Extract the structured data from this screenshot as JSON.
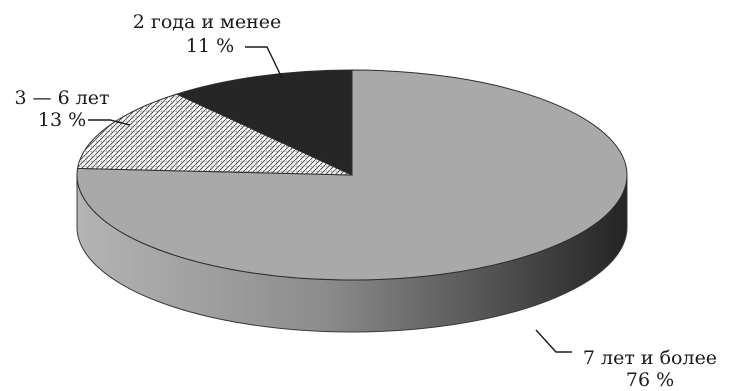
{
  "chart_data": {
    "type": "pie",
    "style": "3d",
    "categories": [
      "7 лет и более",
      "3 — 6 лет",
      "2 года и менее"
    ],
    "values": [
      76,
      13,
      11
    ],
    "value_labels": [
      "76 %",
      "13 %",
      "11 %"
    ],
    "fills": [
      "light-gray",
      "dotted-hatch",
      "dark"
    ],
    "colors": {
      "large": "#a9a9a9",
      "hatch_bg": "#ffffff",
      "hatch_fg": "#555555",
      "small": "#262626"
    },
    "legend": "none",
    "title": ""
  }
}
